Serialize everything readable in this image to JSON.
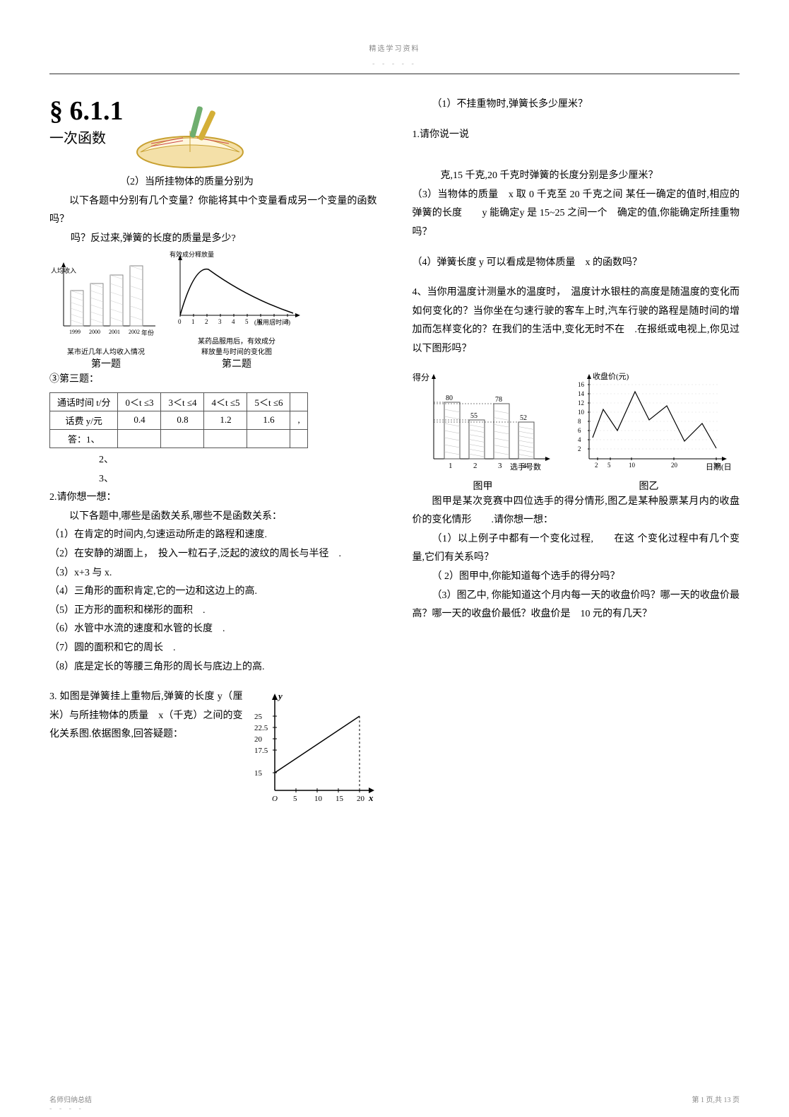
{
  "header": {
    "top": "精选学习资料",
    "dashes": "- - - - -"
  },
  "footer": {
    "left": "名师归纳总结",
    "right": "第 1 页,共 13 页",
    "dashes": "- - - -"
  },
  "left": {
    "section_mark": "§ 6.1.1",
    "subtitle": "一次函数",
    "p_q2": "（2）当所挂物体的质量分别为",
    "p1": "以下各题中分别有几个变量？你能将其中个变量看成另一个变量的函数吗？",
    "p_springline": "吗？反过来,弹簧的长度的质量是多少?",
    "chart1": {
      "title": "某市近几年人均收入情况",
      "label": "第一题",
      "years": [
        "1999",
        "2000",
        "2001",
        "2002",
        "年份"
      ],
      "ylabel": "人均收入",
      "bar_color": "#fff",
      "stroke": "#888"
    },
    "chart2": {
      "caption1": "某药品服用后，有效成分",
      "caption2": "释放量与时间的变化图",
      "label": "第二题",
      "ylabel": "有效成分释放量",
      "xlabel": "(服用后时间)",
      "ticks": [
        "0",
        "1",
        "2",
        "3",
        "4",
        "5",
        "6",
        "7",
        "8"
      ]
    },
    "p2": "③第三题：",
    "table": {
      "headrow": [
        "通话时间 t/分",
        "0＜t ≤3",
        "3＜t ≤4",
        "4＜t ≤5",
        "5＜t ≤6",
        ""
      ],
      "row1": [
        "话费 y/元",
        "0.4",
        "0.8",
        "1.2",
        "1.6",
        ","
      ],
      "row2": [
        "答：1、",
        "",
        "",
        "",
        "",
        ""
      ]
    },
    "list12": "2、",
    "list13": "3、",
    "p3": "2.请你想一想：",
    "p4": "以下各题中,哪些是函数关系,哪些不是函数关系：",
    "items": [
      "（1）在肯定的时间内,匀速运动所走的路程和速度.",
      "（2）在安静的湖面上，　投入一粒石子,泛起的波纹的周长与半径　.",
      "（3）x+3 与 x.",
      "（4）三角形的面积肯定,它的一边和这边上的高.",
      "（5）正方形的面积和梯形的面积　.",
      "（6）水管中水流的速度和水管的长度　.",
      "（7）圆的面积和它的周长　.",
      "（8）底是定长的等腰三角形的周长与底边上的高."
    ],
    "p5": "3. 如图是弹簧挂上重物后,弹簧的长度 y（厘米）与所挂物体的质量　x（千克）之间的变化关系图.依据图象,回答疑题：",
    "spring_chart": {
      "yticks": [
        "25",
        "22.5",
        "20",
        "17.5",
        "15"
      ],
      "xticks": [
        "O",
        "5",
        "10",
        "15",
        "20"
      ],
      "xlabel_end": "x",
      "ylabel_end": "y"
    }
  },
  "right": {
    "p1": "（1）不挂重物时,弹簧长多少厘米？",
    "p2": "1.请你说一说",
    "p_cont": "克,15 千克,20 千克时弹簧的长度分别是多少厘米？",
    "p3": "（3）当物体的质量　x 取 0 千克至 20 千克之间 某任一确定的值时,相应的弹簧的长度　　y 能确定y 是 15~25 之间一个　确定的值,你能确定所挂重物吗？",
    "p4": "（4）弹簧长度 y 可以看成是物体质量　x 的函数吗？",
    "p5": "4、当你用温度计测量水的温度时，　温度计水银柱的高度是随温度的变化而如何变化的？当你坐在匀速行驶的客车上时,汽车行驶的路程是随时间的增加而怎样变化的？在我们的生活中,变化无时不在　.在报纸或电视上,你见过以下图形吗？",
    "chartJia": {
      "ylabel": "得分",
      "values": [
        "80",
        "55",
        "78",
        "52"
      ],
      "x": [
        "1",
        "2",
        "3",
        "4"
      ],
      "xlabel": "选手号数",
      "caption": "图甲",
      "bar_color": "#fff",
      "stroke": "#666"
    },
    "chartYi": {
      "ylabel": "收盘价(元)",
      "yticks": [
        "16",
        "14",
        "12",
        "10",
        "8",
        "6",
        "4",
        "2"
      ],
      "xticks": [
        "2",
        "5",
        "10",
        "20",
        "30"
      ],
      "xlabel": "日期(日)",
      "caption": "图乙"
    },
    "p6": "图甲是某次竞赛中四位选手的得分情形,图乙是某种股票某月内的收盘价的变化情形　　.请你想一想：",
    "p7": "（1）以上例子中都有一个变化过程,　　在这 个变化过程中有几个变量,它们有关系吗？",
    "p8": "（ 2）图甲中,你能知道每个选手的得分吗？",
    "p9": "（3）图乙中, 你能知道这个月内每一天的收盘价吗？哪一天的收盘价最高？哪一天的收盘价最低？收盘价是　10 元的有几天？"
  }
}
